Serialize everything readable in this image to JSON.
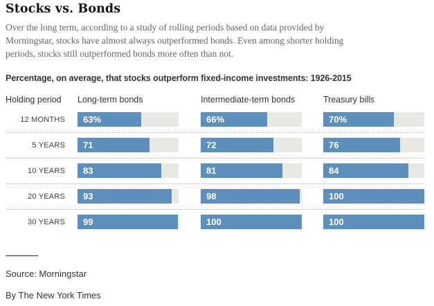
{
  "header": {
    "title": "Stocks vs. Bonds",
    "intro": "Over the long term, according to a study of rolling periods based on data provided by Morningstar, stocks have almost always outperformed bonds. Even among shorter holding periods, stocks still outperformed bonds more often than not."
  },
  "chart_data": {
    "type": "bar",
    "orientation": "horizontal",
    "title": "Percentage, on average, that stocks outperform fixed-income investments: 1926-2015",
    "row_axis_label": "Holding period",
    "categories": [
      "12 MONTHS",
      "5 YEARS",
      "10 YEARS",
      "20 YEARS",
      "30 YEARS"
    ],
    "series": [
      {
        "name": "Long-term bonds",
        "values": [
          63,
          71,
          83,
          93,
          99
        ],
        "labels": [
          "63%",
          "71",
          "83",
          "93",
          "99"
        ]
      },
      {
        "name": "Intermediate-term bonds",
        "values": [
          66,
          72,
          81,
          98,
          100
        ],
        "labels": [
          "66%",
          "72",
          "81",
          "98",
          "100"
        ]
      },
      {
        "name": "Treasury bills",
        "values": [
          70,
          76,
          84,
          100,
          100
        ],
        "labels": [
          "70%",
          "76",
          "84",
          "100",
          "100"
        ]
      }
    ],
    "xlim": [
      0,
      100
    ],
    "unit": "percent",
    "grid": false,
    "legend_position": "column-headers"
  },
  "colors": {
    "bar_fill": "#5d8fbc",
    "bar_track": "#e8e8e3",
    "title_text": "#141414",
    "intro_text": "#666666",
    "label_text": "#333333",
    "value_text": "#ffffff",
    "separator": "#b5b5b5"
  },
  "footer": {
    "source": "Source: Morningstar",
    "byline": "By The New York Times"
  }
}
